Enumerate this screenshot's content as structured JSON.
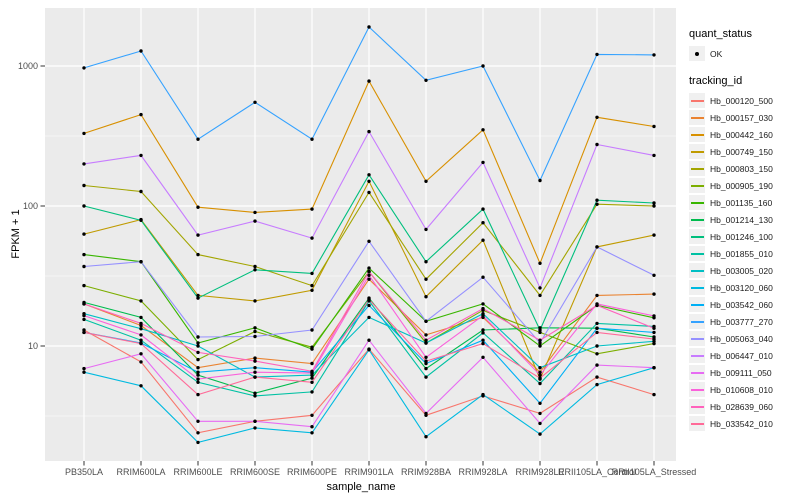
{
  "chart_data": {
    "type": "line",
    "title": "",
    "xlabel": "sample_name",
    "ylabel": "FPKM + 1",
    "y_scale": "log10",
    "ylim": [
      1.5,
      2600
    ],
    "y_major_ticks": [
      10,
      100,
      1000
    ],
    "y_tick_labels": [
      "10",
      "100",
      "1000"
    ],
    "y_minor_ticks": [
      3.162,
      31.62,
      316.2
    ],
    "grid": true,
    "legend_position": "right",
    "panel_bg": "#EBEBEB",
    "grid_color": "#FFFFFF",
    "tick_color": "#333333",
    "tick_label_color": "#4D4D4D",
    "point_color": "#000000",
    "categories": [
      "PB350LA",
      "RRIM600LA",
      "RRIM600LE",
      "RRIM600SE",
      "RRIM600PE",
      "RRIM901LA",
      "RRIM928BA",
      "RRIM928LA",
      "RRIM928LE",
      "RRII105LA_Control",
      "RRII105LA_Stressed"
    ],
    "series": [
      {
        "name": "Hb_000120_500",
        "color": "#F8766D",
        "values": [
          13,
          7.7,
          2.4,
          2.9,
          3.2,
          9.5,
          3.2,
          4.4,
          3.3,
          6.0,
          4.5
        ]
      },
      {
        "name": "Hb_000157_030",
        "color": "#EA8331",
        "values": [
          20,
          14,
          7.0,
          8.2,
          7.5,
          30,
          12,
          16,
          6.5,
          23,
          23.5
        ]
      },
      {
        "name": "Hb_000442_160",
        "color": "#D89000",
        "values": [
          330,
          450,
          98,
          90,
          95,
          780,
          150,
          350,
          39,
          430,
          370
        ]
      },
      {
        "name": "Hb_000749_150",
        "color": "#C09B00",
        "values": [
          63,
          80,
          23,
          21,
          25,
          150,
          22.5,
          57,
          5.8,
          51,
          62
        ]
      },
      {
        "name": "Hb_000803_150",
        "color": "#A3A500",
        "values": [
          140,
          127,
          45,
          37,
          27,
          125,
          30,
          76,
          23,
          103,
          100
        ]
      },
      {
        "name": "Hb_000905_190",
        "color": "#7CAE00",
        "values": [
          27,
          21,
          8.0,
          12.7,
          9.8,
          34,
          10.5,
          18,
          12.5,
          8.8,
          10.4
        ]
      },
      {
        "name": "Hb_001135_160",
        "color": "#39B600",
        "values": [
          45,
          40,
          10.5,
          13.5,
          9.5,
          36,
          15,
          20,
          10,
          19.5,
          15.9
        ]
      },
      {
        "name": "Hb_001214_130",
        "color": "#00BB4E",
        "values": [
          20.5,
          16,
          6.2,
          4.6,
          5.9,
          22,
          6.9,
          13,
          13.5,
          13.4,
          11.6
        ]
      },
      {
        "name": "Hb_001246_100",
        "color": "#00BF7D",
        "values": [
          100,
          79,
          22,
          35,
          33,
          167,
          40,
          95,
          13,
          110,
          105
        ]
      },
      {
        "name": "Hb_001855_010",
        "color": "#00C1A3",
        "values": [
          15.5,
          11,
          5.5,
          4.4,
          4.7,
          21,
          6.0,
          12.4,
          5.4,
          14.5,
          13.8
        ]
      },
      {
        "name": "Hb_003005_020",
        "color": "#00BFC4",
        "values": [
          17,
          13.3,
          10,
          6.0,
          6.2,
          16,
          10.5,
          17,
          7.0,
          10.0,
          10.8
        ]
      },
      {
        "name": "Hb_003120_060",
        "color": "#00BAE0",
        "values": [
          6.5,
          5.2,
          2.05,
          2.6,
          2.4,
          9.4,
          2.25,
          4.5,
          2.35,
          5.3,
          7.0
        ]
      },
      {
        "name": "Hb_003542_060",
        "color": "#00B0F6",
        "values": [
          12.5,
          10.5,
          6.5,
          7.0,
          6.5,
          19.5,
          7.5,
          11,
          3.9,
          13.4,
          12.5
        ]
      },
      {
        "name": "Hb_003777_270",
        "color": "#35A2FF",
        "values": [
          970,
          1280,
          300,
          550,
          300,
          1900,
          790,
          1000,
          152,
          1210,
          1200
        ]
      },
      {
        "name": "Hb_005063_040",
        "color": "#9590FF",
        "values": [
          37,
          40,
          11.6,
          11.7,
          13,
          56,
          15,
          31,
          10.5,
          51,
          32
        ]
      },
      {
        "name": "Hb_006447_010",
        "color": "#C77CFF",
        "values": [
          200,
          230,
          62,
          78,
          59,
          340,
          68,
          205,
          26,
          275,
          230
        ]
      },
      {
        "name": "Hb_009111_050",
        "color": "#E76BF3",
        "values": [
          6.9,
          8.8,
          2.9,
          2.9,
          2.65,
          11,
          3.3,
          8.3,
          2.8,
          7.3,
          7.0
        ]
      },
      {
        "name": "Hb_010608_010",
        "color": "#FA62DB",
        "values": [
          16.5,
          12,
          5.8,
          6.5,
          6.4,
          32,
          8.3,
          16.5,
          6.2,
          20,
          16.4
        ]
      },
      {
        "name": "Hb_028639_060",
        "color": "#FF62BC",
        "values": [
          20,
          14.5,
          9.0,
          7.8,
          6.6,
          34,
          11,
          18.5,
          11,
          19.5,
          13.4
        ]
      },
      {
        "name": "Hb_033542_010",
        "color": "#FF6A98",
        "values": [
          12.5,
          10.4,
          4.5,
          6.0,
          5.5,
          21.5,
          7.8,
          10.4,
          5.9,
          12.5,
          11.2
        ]
      }
    ]
  },
  "legend": {
    "quant_status": {
      "title": "quant_status",
      "items": [
        {
          "label": "OK",
          "marker": "point",
          "color": "#000000"
        }
      ]
    },
    "tracking": {
      "title": "tracking_id"
    }
  }
}
